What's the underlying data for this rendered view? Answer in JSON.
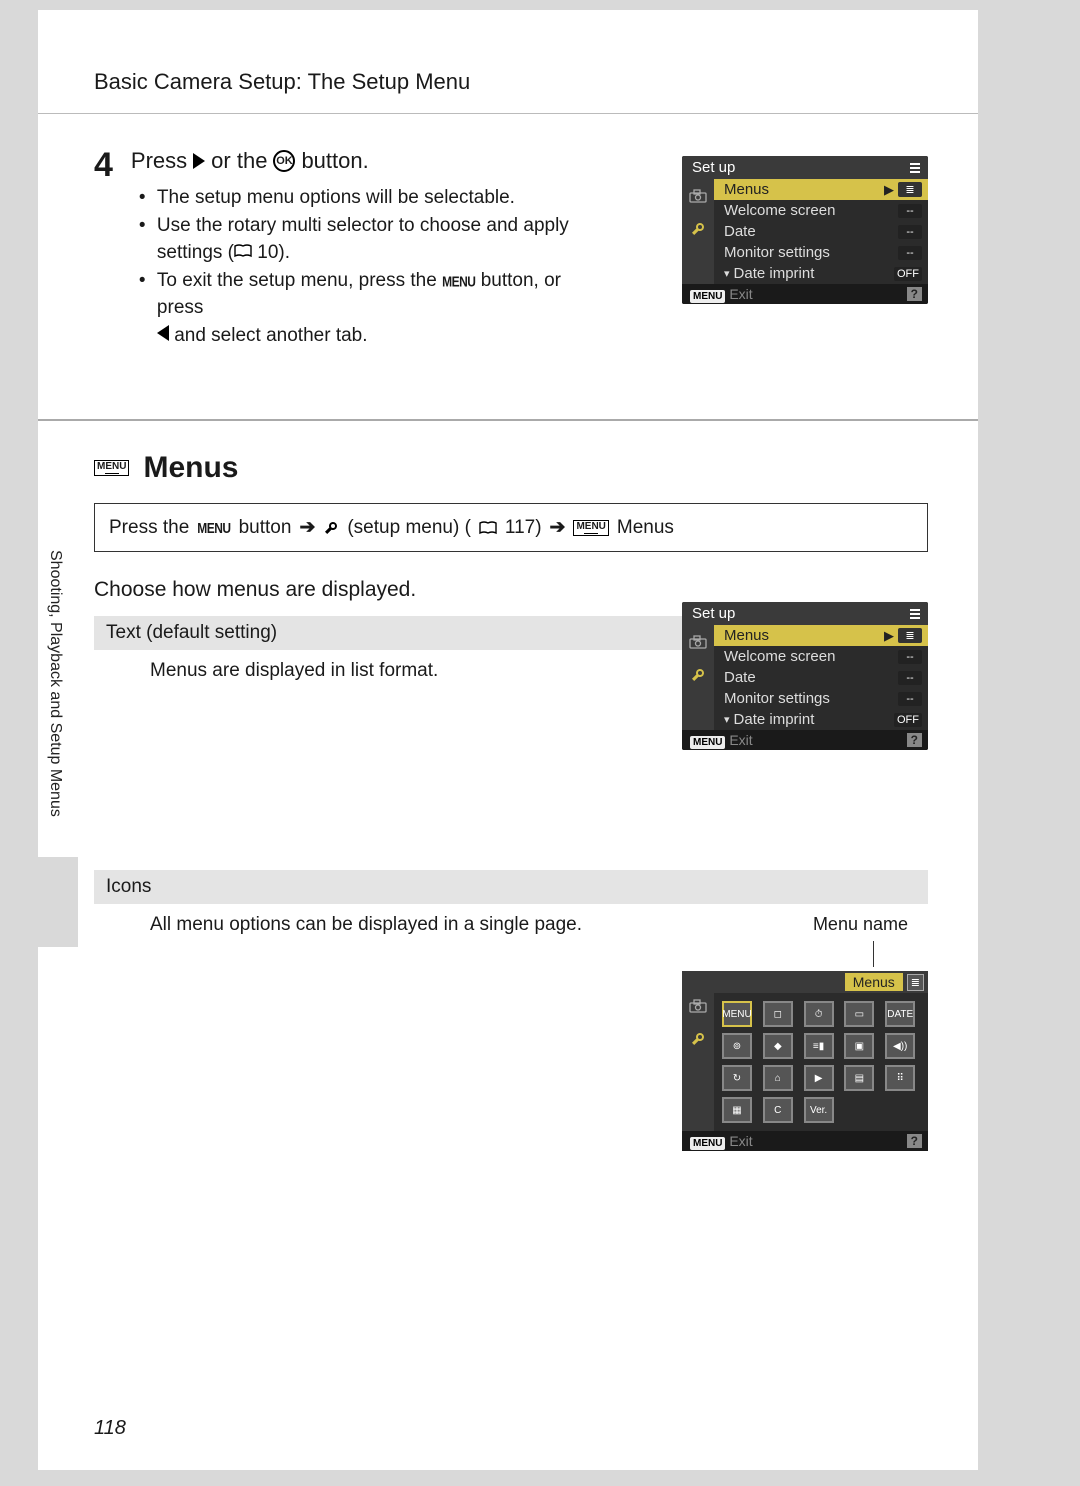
{
  "header": {
    "title": "Basic Camera Setup: The Setup Menu"
  },
  "step": {
    "number": "4",
    "title_pre": "Press",
    "title_mid": "or the",
    "title_post": "button.",
    "bullets": [
      "The setup menu options will be selectable.",
      "Use the rotary multi selector to choose and apply settings (",
      "To exit the setup menu, press the",
      "and select another tab."
    ],
    "ref10": " 10).",
    "button_after": " button, or press"
  },
  "menus": {
    "heading": "Menus",
    "path_pre": "Press the",
    "path_btn": "button",
    "path_setup": "(setup menu) (",
    "path_ref": " 117)",
    "path_tail": "Menus",
    "lead": "Choose how menus are displayed."
  },
  "text_mode": {
    "head": "Text (default setting)",
    "body": "Menus are displayed in list format."
  },
  "icons_mode": {
    "head": "Icons",
    "body": "All menu options can be displayed in a single page.",
    "caption": "Menu name"
  },
  "lcd": {
    "title": "Set up",
    "rows": [
      {
        "label": "Menus",
        "value": "",
        "hi": true,
        "list_icon": true
      },
      {
        "label": "Welcome screen",
        "value": "--"
      },
      {
        "label": "Date",
        "value": "--"
      },
      {
        "label": "Monitor settings",
        "value": "--"
      },
      {
        "label": "Date imprint",
        "value": "OFF",
        "date": true
      }
    ],
    "exit": "Exit",
    "menu": "MENU"
  },
  "icons_lcd": {
    "label": "Menus",
    "cells": [
      "MENU",
      "◻",
      "⏱",
      "▭",
      "DATE",
      "⊚",
      "◆",
      "≡▮",
      "▣",
      "◀))",
      "↻",
      "⌂",
      "▶",
      "▤",
      "⠿",
      "▦",
      "C",
      "Ver.",
      "",
      ""
    ]
  },
  "side_label": "Shooting, Playback and Setup Menus",
  "page_number": "118",
  "colors": {
    "page_bg": "#ffffff",
    "outer_bg": "#d9d9d9",
    "lcd_bg": "#2b2b2b",
    "lcd_header": "#3a3a3a",
    "highlight": "#d6c24a",
    "subhead_bg": "#e4e4e4"
  }
}
